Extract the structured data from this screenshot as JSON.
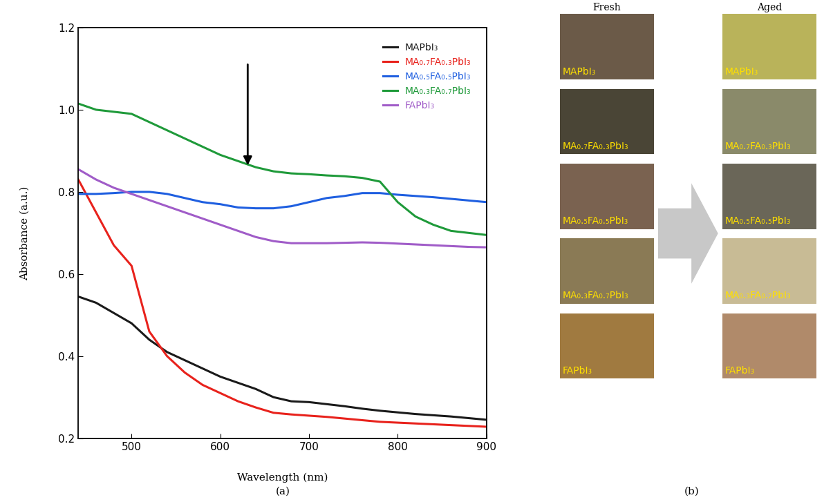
{
  "chart_data": {
    "type": "line",
    "panel_label": "(a)",
    "x_label": "Wavelength (nm)",
    "y_label": "Absorbance (a.u.)",
    "xlim": [
      440,
      900
    ],
    "ylim": [
      0.2,
      1.2
    ],
    "xticks": [
      500,
      600,
      700,
      800,
      900
    ],
    "yticks": [
      0.2,
      0.4,
      0.6,
      0.8,
      1.0,
      1.2
    ],
    "legend": "upper right",
    "x": [
      440,
      460,
      480,
      500,
      520,
      540,
      560,
      580,
      600,
      620,
      640,
      660,
      680,
      700,
      720,
      740,
      760,
      780,
      800,
      820,
      840,
      860,
      880,
      900
    ],
    "series": [
      {
        "name": "MAPbI₃",
        "color": "#1a1a1a",
        "values": [
          0.545,
          0.53,
          0.505,
          0.48,
          0.44,
          0.41,
          0.39,
          0.37,
          0.35,
          0.335,
          0.32,
          0.3,
          0.29,
          0.288,
          0.283,
          0.278,
          0.272,
          0.267,
          0.263,
          0.259,
          0.256,
          0.253,
          0.249,
          0.245
        ]
      },
      {
        "name": "MA₀.₇FA₀.₃PbI₃",
        "color": "#e8221c",
        "values": [
          0.83,
          0.75,
          0.67,
          0.62,
          0.46,
          0.4,
          0.36,
          0.33,
          0.31,
          0.29,
          0.275,
          0.262,
          0.258,
          0.255,
          0.252,
          0.248,
          0.244,
          0.24,
          0.238,
          0.236,
          0.234,
          0.232,
          0.23,
          0.228
        ]
      },
      {
        "name": "MA₀.₅FA₀.₅PbI₃",
        "color": "#1f5fe0",
        "values": [
          0.795,
          0.795,
          0.797,
          0.8,
          0.8,
          0.795,
          0.785,
          0.775,
          0.77,
          0.762,
          0.76,
          0.76,
          0.765,
          0.775,
          0.785,
          0.79,
          0.797,
          0.797,
          0.793,
          0.79,
          0.787,
          0.783,
          0.779,
          0.775
        ]
      },
      {
        "name": "MA₀.₃FA₀.₇PbI₃",
        "color": "#1f9a3a",
        "values": [
          1.015,
          1.0,
          0.995,
          0.99,
          0.97,
          0.95,
          0.93,
          0.91,
          0.89,
          0.875,
          0.86,
          0.85,
          0.845,
          0.843,
          0.84,
          0.838,
          0.834,
          0.825,
          0.775,
          0.74,
          0.72,
          0.705,
          0.7,
          0.695
        ]
      },
      {
        "name": "FAPbI₃",
        "color": "#a05cc8",
        "values": [
          0.855,
          0.83,
          0.81,
          0.795,
          0.78,
          0.765,
          0.75,
          0.735,
          0.72,
          0.705,
          0.69,
          0.68,
          0.675,
          0.675,
          0.675,
          0.676,
          0.677,
          0.676,
          0.674,
          0.672,
          0.67,
          0.668,
          0.666,
          0.665
        ]
      }
    ]
  },
  "photos": {
    "panel_label": "(b)",
    "columns": [
      {
        "title": "Fresh",
        "samples": [
          {
            "label": "MAPbI₃",
            "color": "#6b5a48"
          },
          {
            "label": "MA₀.₇FA₀.₃PbI₃",
            "color": "#4a4536"
          },
          {
            "label": "MA₀.₅FA₀.₅PbI₃",
            "color": "#7a6250"
          },
          {
            "label": "MA₀.₃FA₀.₇PbI₃",
            "color": "#8a7a55"
          },
          {
            "label": "FAPbI₃",
            "color": "#a07a40"
          }
        ]
      },
      {
        "title": "Aged",
        "samples": [
          {
            "label": "MAPbI₃",
            "color": "#b9b35a"
          },
          {
            "label": "MA₀.₇FA₀.₃PbI₃",
            "color": "#8a8a6a"
          },
          {
            "label": "MA₀.₅FA₀.₅PbI₃",
            "color": "#6a6658"
          },
          {
            "label": "MA₀.₃FA₀.₇PbI₃",
            "color": "#c8bb95"
          },
          {
            "label": "FAPbI₃",
            "color": "#b08a6a"
          }
        ]
      }
    ]
  }
}
